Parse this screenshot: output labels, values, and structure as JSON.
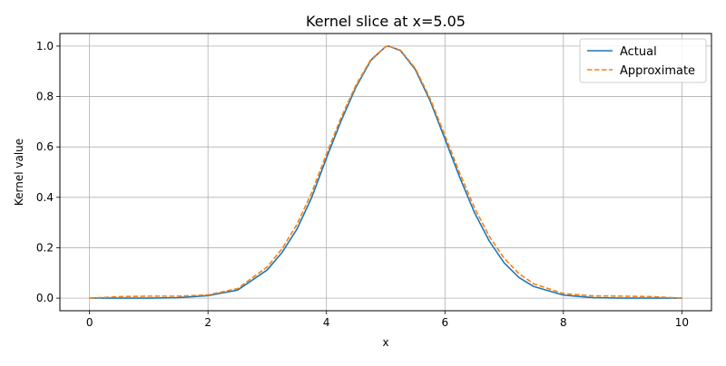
{
  "chart_data": {
    "type": "line",
    "title": "Kernel slice at x=5.05",
    "xlabel": "x",
    "ylabel": "Kernel value",
    "xlim": [
      -0.5,
      10.5
    ],
    "ylim": [
      -0.05,
      1.05
    ],
    "x_ticks": [
      0,
      2,
      4,
      6,
      8,
      10
    ],
    "x_tick_labels": [
      "0",
      "2",
      "4",
      "6",
      "8",
      "10"
    ],
    "y_ticks": [
      0.0,
      0.2,
      0.4,
      0.6,
      0.8,
      1.0
    ],
    "y_tick_labels": [
      "0.0",
      "0.2",
      "0.4",
      "0.6",
      "0.8",
      "1.0"
    ],
    "grid": true,
    "legend_position": "top-right",
    "series": [
      {
        "name": "Actual",
        "color": "#1f77b4",
        "style": "solid",
        "x": [
          0,
          0.5,
          1,
          1.5,
          2,
          2.5,
          3,
          3.25,
          3.5,
          3.75,
          4,
          4.25,
          4.5,
          4.75,
          5,
          5.05,
          5.25,
          5.5,
          5.75,
          6,
          6.25,
          6.5,
          6.75,
          7,
          7.25,
          7.5,
          8,
          8.5,
          9,
          9.5,
          10
        ],
        "y": [
          0.0,
          0.0,
          0.0,
          0.002,
          0.01,
          0.032,
          0.112,
          0.181,
          0.273,
          0.399,
          0.556,
          0.705,
          0.838,
          0.944,
          0.998,
          1.0,
          0.982,
          0.907,
          0.783,
          0.632,
          0.479,
          0.339,
          0.226,
          0.14,
          0.082,
          0.046,
          0.012,
          0.002,
          0.0,
          0.0,
          0.0
        ]
      },
      {
        "name": "Approximate",
        "color": "#ff7f0e",
        "style": "dashed",
        "x": [
          0,
          0.5,
          1,
          1.5,
          2,
          2.5,
          3,
          3.25,
          3.5,
          3.75,
          4,
          4.25,
          4.5,
          4.75,
          5,
          5.05,
          5.25,
          5.5,
          5.75,
          6,
          6.25,
          6.5,
          6.75,
          7,
          7.25,
          7.5,
          8,
          8.5,
          9,
          9.5,
          10
        ],
        "y": [
          0.0,
          0.006,
          0.008,
          0.008,
          0.013,
          0.038,
          0.124,
          0.196,
          0.292,
          0.418,
          0.572,
          0.718,
          0.846,
          0.947,
          0.998,
          1.0,
          0.984,
          0.912,
          0.792,
          0.646,
          0.496,
          0.358,
          0.245,
          0.158,
          0.097,
          0.057,
          0.018,
          0.009,
          0.008,
          0.006,
          0.0
        ]
      }
    ]
  }
}
